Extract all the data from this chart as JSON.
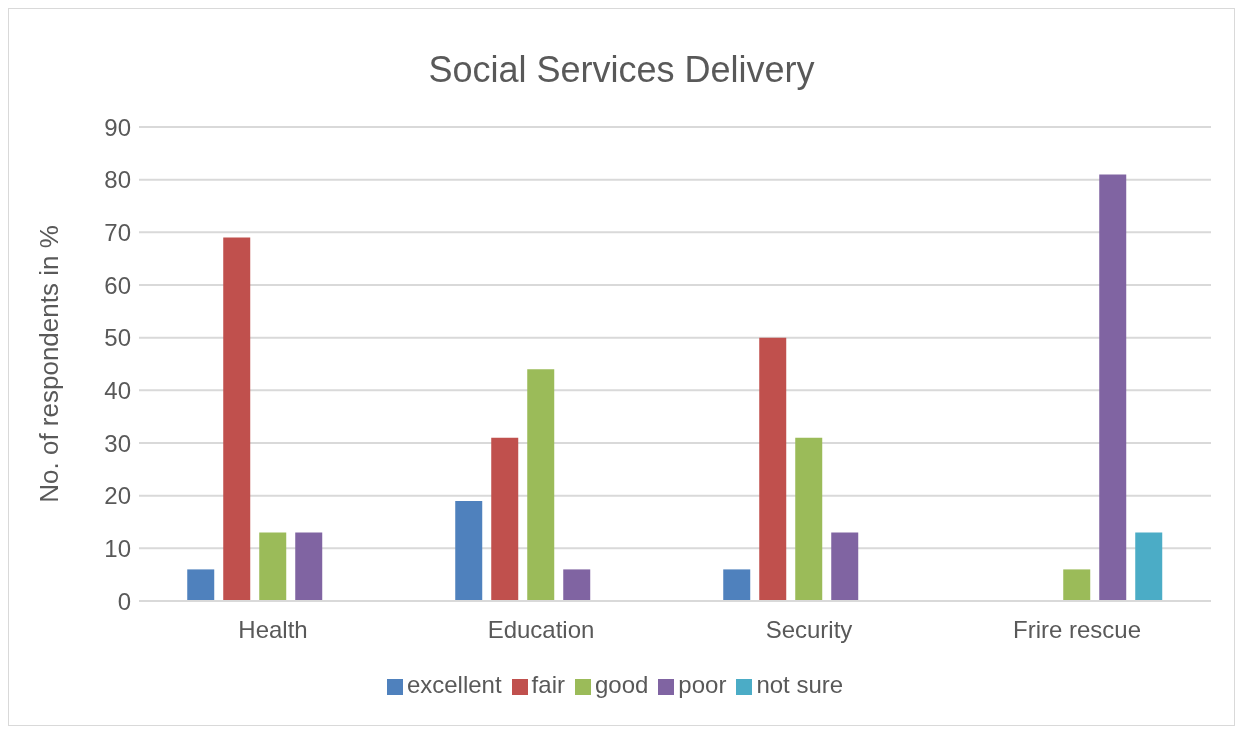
{
  "chart_data": {
    "type": "bar",
    "title": "Social Services Delivery",
    "ylabel": "No. of respondents in %",
    "categories": [
      "Health",
      "Education",
      "Security",
      "Frire rescue"
    ],
    "series": [
      {
        "name": "excellent",
        "color": "#4f81bd",
        "values": [
          6,
          19,
          6,
          null
        ]
      },
      {
        "name": "fair",
        "color": "#c0504d",
        "values": [
          69,
          31,
          50,
          null
        ]
      },
      {
        "name": "good",
        "color": "#9bbb59",
        "values": [
          13,
          44,
          31,
          6
        ]
      },
      {
        "name": "poor",
        "color": "#8064a2",
        "values": [
          13,
          6,
          13,
          81
        ]
      },
      {
        "name": "not sure",
        "color": "#4bacc6",
        "values": [
          null,
          null,
          null,
          13
        ]
      }
    ],
    "ylim": [
      0,
      90
    ],
    "yticks": [
      0,
      10,
      20,
      30,
      40,
      50,
      60,
      70,
      80,
      90
    ],
    "grid": "y",
    "legend": "bottom"
  }
}
